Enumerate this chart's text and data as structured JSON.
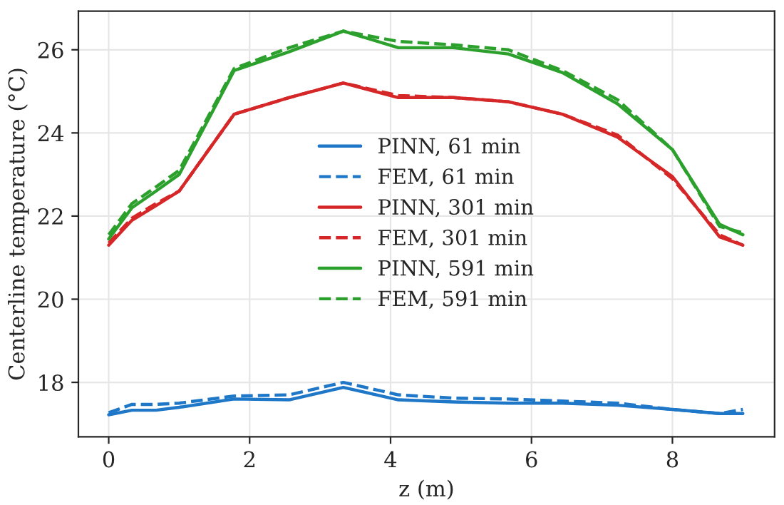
{
  "chart_data": {
    "type": "line",
    "xlabel": "z (m)",
    "ylabel": "Centerline temperature (°C)",
    "x": [
      0,
      0.33,
      0.67,
      1.0,
      1.78,
      2.56,
      3.33,
      4.11,
      4.89,
      5.67,
      6.44,
      7.22,
      8.0,
      8.67,
      9.0
    ],
    "series": [
      {
        "name": "PINN, 61 min",
        "color": "#1f77c8",
        "line_style": "solid",
        "values": [
          17.22,
          17.33,
          17.33,
          17.4,
          17.6,
          17.58,
          17.88,
          17.58,
          17.53,
          17.5,
          17.5,
          17.45,
          17.35,
          17.25,
          17.25
        ]
      },
      {
        "name": "FEM, 61 min",
        "color": "#1f77c8",
        "line_style": "dashed",
        "values": [
          17.27,
          17.47,
          17.47,
          17.5,
          17.67,
          17.7,
          18.0,
          17.7,
          17.62,
          17.6,
          17.55,
          17.5,
          17.35,
          17.25,
          17.35
        ]
      },
      {
        "name": "PINN, 301 min",
        "color": "#d62728",
        "line_style": "solid",
        "values": [
          21.3,
          21.9,
          22.25,
          22.6,
          24.45,
          24.85,
          25.2,
          24.85,
          24.85,
          24.75,
          24.45,
          23.9,
          22.95,
          21.5,
          21.3
        ]
      },
      {
        "name": "FEM, 301 min",
        "color": "#d62728",
        "line_style": "dashed",
        "values": [
          21.35,
          21.95,
          22.3,
          22.6,
          24.45,
          24.85,
          25.2,
          24.9,
          24.85,
          24.75,
          24.45,
          23.95,
          22.9,
          21.55,
          21.3
        ]
      },
      {
        "name": "PINN, 591 min",
        "color": "#2ca02c",
        "line_style": "solid",
        "values": [
          21.45,
          22.2,
          22.6,
          23.0,
          25.5,
          25.95,
          26.45,
          26.05,
          26.05,
          25.9,
          25.45,
          24.7,
          23.6,
          21.8,
          21.55
        ]
      },
      {
        "name": "FEM, 591 min",
        "color": "#2ca02c",
        "line_style": "dashed",
        "values": [
          21.55,
          22.3,
          22.7,
          23.1,
          25.55,
          26.05,
          26.45,
          26.2,
          26.12,
          26.0,
          25.5,
          24.8,
          23.6,
          21.75,
          21.6
        ]
      }
    ],
    "xlim": [
      -0.43,
      9.45
    ],
    "xticks": [
      0,
      2,
      4,
      6,
      8
    ],
    "ylim": [
      16.69,
      26.93
    ],
    "yticks": [
      18,
      20,
      22,
      24,
      26
    ],
    "grid": true,
    "legend": "center",
    "marker": "none"
  }
}
